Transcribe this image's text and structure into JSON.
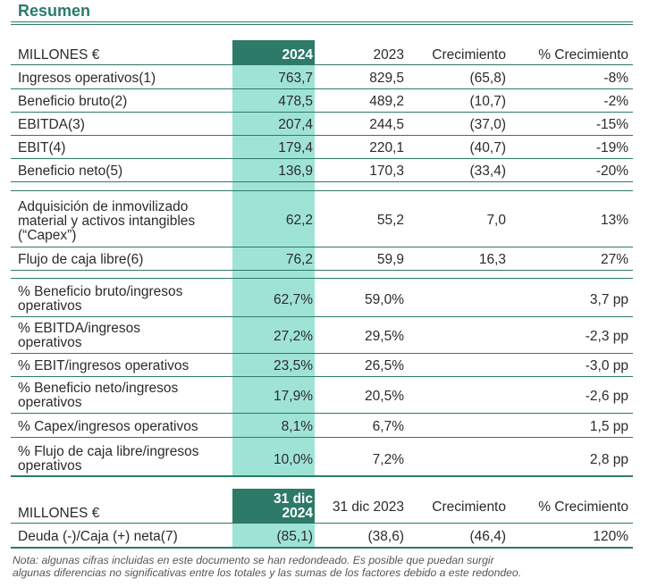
{
  "title": "Resumen",
  "table1": {
    "header": {
      "label": "MILLONES €",
      "y2024": "2024",
      "y2023": "2023",
      "growth": "Crecimiento",
      "pct": "% Crecimiento"
    },
    "rows": [
      {
        "label": "Ingresos operativos(1)",
        "y2024": "763,7",
        "y2023": "829,5",
        "growth": "(65,8)",
        "pct": "-8%"
      },
      {
        "label": "Beneficio bruto(2)",
        "y2024": "478,5",
        "y2023": "489,2",
        "growth": "(10,7)",
        "pct": "-2%"
      },
      {
        "label": "EBITDA(3)",
        "y2024": "207,4",
        "y2023": "244,5",
        "growth": "(37,0)",
        "pct": "-15%"
      },
      {
        "label": "EBIT(4)",
        "y2024": "179,4",
        "y2023": "220,1",
        "growth": "(40,7)",
        "pct": "-19%"
      },
      {
        "label": "Beneficio neto(5)",
        "y2024": "136,9",
        "y2023": "170,3",
        "growth": "(33,4)",
        "pct": "-20%"
      },
      {
        "label_l1": "Adquisición de inmovilizado",
        "label_l2": "material y activos intangibles",
        "label_l3": "(“Capex”)",
        "y2024": "62,2",
        "y2023": "55,2",
        "growth": "7,0",
        "pct": "13%"
      },
      {
        "label": "Flujo de caja libre(6)",
        "y2024": "76,2",
        "y2023": "59,9",
        "growth": "16,3",
        "pct": "27%"
      },
      {
        "label_l1": "% Beneficio bruto/ingresos",
        "label_l2": "operativos",
        "y2024": "62,7%",
        "y2023": "59,0%",
        "pct": "3,7 pp"
      },
      {
        "label_l1": "% EBITDA/ingresos",
        "label_l2": "operativos",
        "y2024": "27,2%",
        "y2023": "29,5%",
        "pct": "-2,3 pp"
      },
      {
        "label": "% EBIT/ingresos operativos",
        "y2024": "23,5%",
        "y2023": "26,5%",
        "pct": "-3,0 pp"
      },
      {
        "label_l1": "% Beneficio neto/ingresos",
        "label_l2": "operativos",
        "y2024": "17,9%",
        "y2023": "20,5%",
        "pct": "-2,6 pp"
      },
      {
        "label": "% Capex/ingresos operativos",
        "y2024": "8,1%",
        "y2023": "6,7%",
        "pct": "1,5 pp"
      },
      {
        "label_l1": "% Flujo de caja libre/ingresos",
        "label_l2": "operativos",
        "y2024": "10,0%",
        "y2023": "7,2%",
        "pct": "2,8 pp"
      }
    ]
  },
  "table2": {
    "header": {
      "label": "MILLONES €",
      "d2024_l1": "31 dic",
      "d2024_l2": "2024",
      "d2023": "31 dic 2023",
      "growth": "Crecimiento",
      "pct": "% Crecimiento"
    },
    "row": {
      "label": "Deuda (-)/Caja (+) neta(7)",
      "v2024": "(85,1)",
      "v2023": "(38,6)",
      "growth": "(46,4)",
      "pct": "120%"
    }
  },
  "note_l1": "Nota: algunas cifras incluidas en este documento se han redondeado. Es posible que puedan surgir",
  "note_l2": "algunas diferencias no significativas entre los totales y las sumas de los factores debido a este redondeo."
}
